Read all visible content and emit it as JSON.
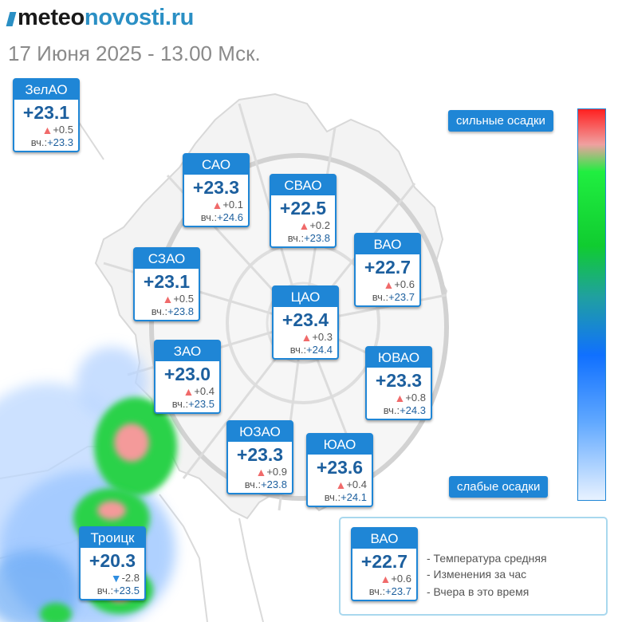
{
  "header": {
    "logo_part1": "meteo",
    "logo_part2": "novosti.ru",
    "date_line": "17 Июня 2025 - 13.00 Мск."
  },
  "districts": [
    {
      "id": "zelao",
      "name": "ЗелАО",
      "temp": "+23.1",
      "change": "+0.5",
      "trend": "up",
      "yesterday_label": "вч.:",
      "yesterday": "+23.3"
    },
    {
      "id": "sao",
      "name": "САО",
      "temp": "+23.3",
      "change": "+0.1",
      "trend": "up",
      "yesterday_label": "вч.:",
      "yesterday": "+24.6"
    },
    {
      "id": "svao",
      "name": "СВАО",
      "temp": "+22.5",
      "change": "+0.2",
      "trend": "up",
      "yesterday_label": "вч.:",
      "yesterday": "+23.8"
    },
    {
      "id": "vao",
      "name": "ВАО",
      "temp": "+22.7",
      "change": "+0.6",
      "trend": "up",
      "yesterday_label": "вч.:",
      "yesterday": "+23.7"
    },
    {
      "id": "szao",
      "name": "СЗАО",
      "temp": "+23.1",
      "change": "+0.5",
      "trend": "up",
      "yesterday_label": "вч.:",
      "yesterday": "+23.8"
    },
    {
      "id": "cao",
      "name": "ЦАО",
      "temp": "+23.4",
      "change": "+0.3",
      "trend": "up",
      "yesterday_label": "вч.:",
      "yesterday": "+24.4"
    },
    {
      "id": "zao",
      "name": "ЗАО",
      "temp": "+23.0",
      "change": "+0.4",
      "trend": "up",
      "yesterday_label": "вч.:",
      "yesterday": "+23.5"
    },
    {
      "id": "yuvao",
      "name": "ЮВАО",
      "temp": "+23.3",
      "change": "+0.8",
      "trend": "up",
      "yesterday_label": "вч.:",
      "yesterday": "+24.3"
    },
    {
      "id": "yuzao",
      "name": "ЮЗАО",
      "temp": "+23.3",
      "change": "+0.9",
      "trend": "up",
      "yesterday_label": "вч.:",
      "yesterday": "+23.8"
    },
    {
      "id": "yuao",
      "name": "ЮАО",
      "temp": "+23.6",
      "change": "+0.4",
      "trend": "up",
      "yesterday_label": "вч.:",
      "yesterday": "+24.1"
    },
    {
      "id": "troitsk",
      "name": "Троицк",
      "temp": "+20.3",
      "change": "-2.8",
      "trend": "down",
      "yesterday_label": "вч.:",
      "yesterday": "+23.5"
    }
  ],
  "legend": {
    "strong_label": "сильные осадки",
    "weak_label": "слабые осадки",
    "colors": [
      "#ff2020",
      "#f0a0a0",
      "#20ee40",
      "#10cc30",
      "#20a0a0",
      "#1070ff",
      "#60a8ff",
      "#e8f2ff"
    ]
  },
  "key": {
    "sample": {
      "name": "ВАО",
      "temp": "+22.7",
      "change": "+0.6",
      "trend": "up",
      "yesterday_label": "вч.:",
      "yesterday": "+23.7"
    },
    "line1": "- Температура средняя",
    "line2": "- Изменения за час",
    "line3": "- Вчера в это время"
  },
  "icons": {
    "up": "triangle-up-icon",
    "down": "triangle-down-icon"
  },
  "accent_color": "#1f86d6"
}
